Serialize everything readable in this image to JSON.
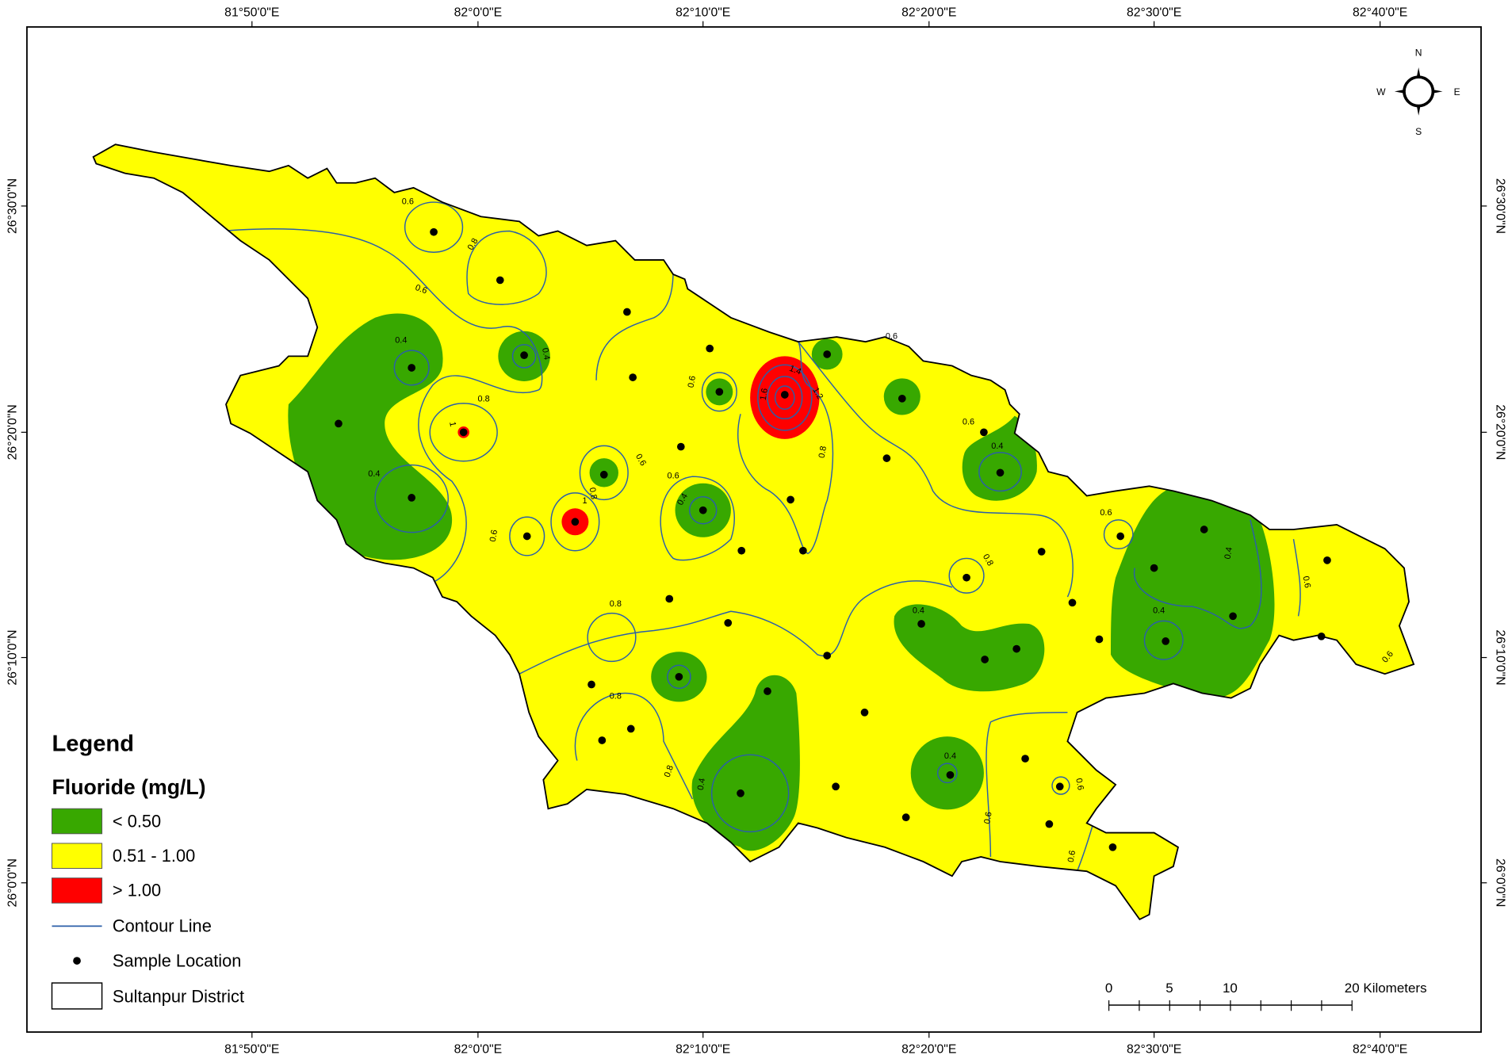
{
  "axes": {
    "longitude_labels": [
      "81°50'0\"E",
      "82°0'0\"E",
      "82°10'0\"E",
      "82°20'0\"E",
      "82°30'0\"E",
      "82°40'0\"E"
    ],
    "latitude_labels": [
      "26°30'0\"N",
      "26°20'0\"N",
      "26°10'0\"N",
      "26°0'0\"N"
    ]
  },
  "compass": {
    "n": "N",
    "e": "E",
    "s": "S",
    "w": "W"
  },
  "legend": {
    "title": "Legend",
    "subtitle": "Fluoride (mg/L)",
    "classes": [
      {
        "label": "< 0.50",
        "color": "#38a800"
      },
      {
        "label": "0.51 - 1.00",
        "color": "#ffff00"
      },
      {
        "label": "> 1.00",
        "color": "#ff0000"
      }
    ],
    "contour_line": {
      "label": "Contour Line",
      "color": "#2b5fa8"
    },
    "sample_location": {
      "label": "Sample Location"
    },
    "district": {
      "label": "Sultanpur District"
    }
  },
  "scale_bar": {
    "labels": [
      "0",
      "5",
      "10",
      "20 Kilometers"
    ]
  },
  "contour_labels": [
    "0.6",
    "0.8",
    "0.6",
    "0.4",
    "0.4",
    "0.8",
    "1",
    "0.4",
    "0.6",
    "0.6",
    "0.8",
    "1",
    "0.6",
    "0.4",
    "1.4",
    "1.2",
    "1.6",
    "0.8",
    "0.6",
    "0.4",
    "0.6",
    "0.8",
    "0.6",
    "0.4",
    "0.6",
    "0.4",
    "0.4",
    "0.8",
    "0.8",
    "0.6",
    "0.4",
    "0.6",
    "0.4",
    "0.8",
    "0.6",
    "0.6",
    "0.6"
  ]
}
